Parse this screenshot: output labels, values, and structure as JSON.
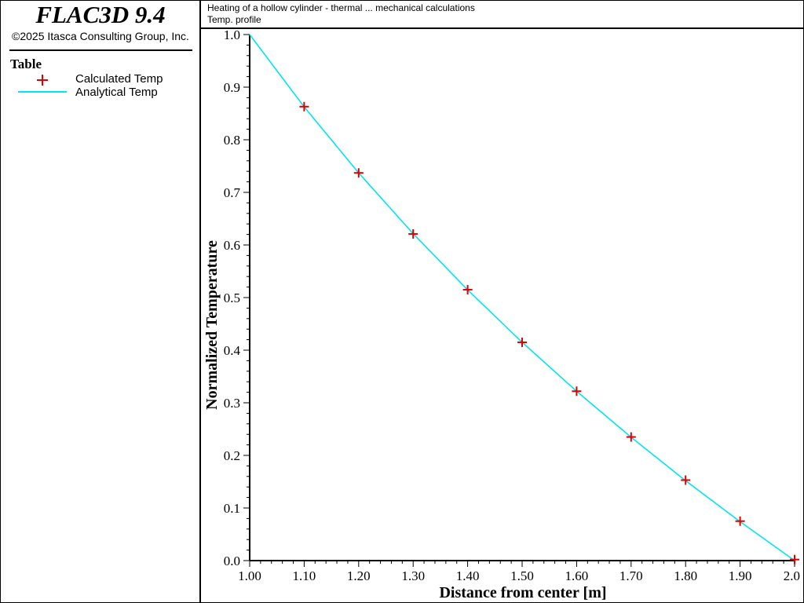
{
  "app": {
    "title": "FLAC3D 9.4",
    "copyright": "©2025 Itasca Consulting Group, Inc."
  },
  "header": {
    "line1": "Heating of a hollow cylinder - thermal ... mechanical calculations",
    "line2": "Temp. profile"
  },
  "legend": {
    "title": "Table",
    "items": [
      {
        "label": "Calculated Temp",
        "symbol": "plus-icon",
        "color": "#e00000"
      },
      {
        "label": "Analytical Temp",
        "symbol": "line-icon",
        "color": "#00e5ee"
      }
    ]
  },
  "chart_data": {
    "type": "line",
    "xlabel": "Distance from center [m]",
    "ylabel": "Normalized Temperature",
    "xlim": [
      1.0,
      2.0
    ],
    "ylim": [
      0.0,
      1.0
    ],
    "x_ticks": [
      "1.00",
      "1.10",
      "1.20",
      "1.30",
      "1.40",
      "1.50",
      "1.60",
      "1.70",
      "1.80",
      "1.90",
      "2.0"
    ],
    "y_ticks": [
      "0.0",
      "0.1",
      "0.2",
      "0.3",
      "0.4",
      "0.5",
      "0.6",
      "0.7",
      "0.8",
      "0.9",
      "1.0"
    ],
    "grid": false,
    "series": [
      {
        "name": "Calculated Temp",
        "kind": "scatter",
        "marker": "plus",
        "color": "#e00000",
        "x": [
          1.1,
          1.2,
          1.3,
          1.4,
          1.5,
          1.6,
          1.7,
          1.8,
          1.9,
          2.0
        ],
        "y": [
          0.863,
          0.737,
          0.621,
          0.515,
          0.415,
          0.322,
          0.235,
          0.153,
          0.075,
          0.002
        ]
      },
      {
        "name": "Analytical Temp",
        "kind": "line",
        "color": "#00e5ee",
        "x": [
          1.0,
          1.1,
          1.2,
          1.3,
          1.4,
          1.5,
          1.6,
          1.7,
          1.8,
          1.9,
          2.0
        ],
        "y": [
          1.0,
          0.8625,
          0.737,
          0.6215,
          0.5146,
          0.4151,
          0.3219,
          0.2345,
          0.152,
          0.074,
          0.0
        ]
      }
    ]
  }
}
